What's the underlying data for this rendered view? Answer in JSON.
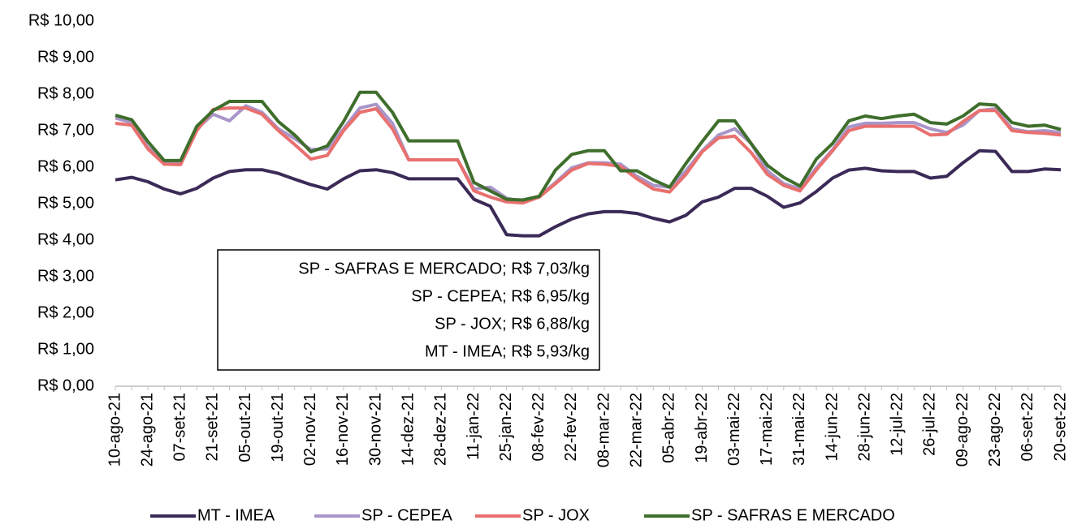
{
  "chart_data": {
    "type": "line",
    "categories": [
      "10-ago-21",
      null,
      "24-ago-21",
      null,
      "07-set-21",
      null,
      "21-set-21",
      null,
      "05-out-21",
      null,
      "19-out-21",
      null,
      "02-nov-21",
      null,
      "16-nov-21",
      null,
      "30-nov-21",
      null,
      "14-dez-21",
      null,
      "28-dez-21",
      null,
      "11-jan-22",
      null,
      "25-jan-22",
      null,
      "08-fev-22",
      null,
      "22-fev-22",
      null,
      "08-mar-22",
      null,
      "22-mar-22",
      null,
      "05-abr-22",
      null,
      "19-abr-22",
      null,
      "03-mai-22",
      null,
      "17-mai-22",
      null,
      "31-mai-22",
      null,
      "14-jun-22",
      null,
      "28-jun-22",
      null,
      "12-jul-22",
      null,
      "26-jul-22",
      null,
      "09-ago-22",
      null,
      "23-ago-22",
      null,
      "06-set-22",
      null,
      "20-set-22"
    ],
    "series": [
      {
        "name": "MT - IMEA",
        "color": "#3b2a57",
        "values": [
          5.65,
          5.72,
          5.6,
          5.4,
          5.27,
          5.42,
          5.7,
          5.88,
          5.93,
          5.93,
          5.83,
          5.67,
          5.52,
          5.4,
          5.68,
          5.9,
          5.93,
          5.85,
          5.68,
          5.68,
          5.68,
          5.68,
          5.12,
          4.93,
          4.15,
          4.12,
          4.12,
          4.37,
          4.58,
          4.72,
          4.78,
          4.78,
          4.73,
          4.6,
          4.5,
          4.68,
          5.05,
          5.18,
          5.42,
          5.42,
          5.2,
          4.9,
          5.02,
          5.33,
          5.7,
          5.92,
          5.97,
          5.9,
          5.88,
          5.88,
          5.7,
          5.75,
          6.12,
          6.45,
          6.43,
          5.88,
          5.88,
          5.95,
          5.93
        ]
      },
      {
        "name": "SP - CEPEA",
        "color": "#a995c9",
        "values": [
          7.35,
          7.22,
          6.55,
          6.12,
          6.1,
          7.05,
          7.45,
          7.27,
          7.68,
          7.5,
          7.05,
          6.78,
          6.48,
          6.5,
          7.05,
          7.62,
          7.72,
          7.2,
          6.2,
          6.2,
          6.2,
          6.2,
          5.4,
          5.45,
          5.15,
          5.05,
          5.2,
          5.58,
          5.98,
          6.12,
          6.12,
          6.08,
          5.75,
          5.5,
          5.45,
          5.9,
          6.45,
          6.88,
          7.05,
          6.65,
          5.9,
          5.55,
          5.4,
          5.98,
          6.48,
          7.1,
          7.2,
          7.2,
          7.22,
          7.22,
          7.05,
          6.95,
          7.15,
          7.55,
          7.6,
          7.05,
          6.97,
          7.0,
          6.95
        ]
      },
      {
        "name": "SP - JOX",
        "color": "#e8706f",
        "values": [
          7.2,
          7.15,
          6.5,
          6.08,
          6.07,
          7.0,
          7.58,
          7.62,
          7.62,
          7.45,
          7.0,
          6.62,
          6.22,
          6.32,
          7.0,
          7.5,
          7.6,
          7.05,
          6.2,
          6.2,
          6.2,
          6.2,
          5.35,
          5.18,
          5.05,
          5.02,
          5.18,
          5.55,
          5.92,
          6.1,
          6.08,
          6.02,
          5.68,
          5.4,
          5.32,
          5.8,
          6.42,
          6.8,
          6.85,
          6.4,
          5.8,
          5.5,
          5.35,
          5.92,
          6.45,
          7.0,
          7.12,
          7.12,
          7.12,
          7.12,
          6.88,
          6.9,
          7.25,
          7.55,
          7.55,
          7.0,
          6.95,
          6.93,
          6.88
        ]
      },
      {
        "name": "SP - SAFRAS E MERCADO",
        "color": "#3f6e2c",
        "values": [
          7.42,
          7.3,
          6.7,
          6.18,
          6.18,
          7.12,
          7.55,
          7.8,
          7.8,
          7.8,
          7.25,
          6.88,
          6.42,
          6.58,
          7.25,
          8.05,
          8.05,
          7.5,
          6.72,
          6.72,
          6.72,
          6.72,
          5.58,
          5.35,
          5.12,
          5.1,
          5.2,
          5.92,
          6.35,
          6.45,
          6.45,
          5.9,
          5.9,
          5.65,
          5.45,
          6.1,
          6.7,
          7.27,
          7.27,
          6.65,
          6.05,
          5.72,
          5.48,
          6.22,
          6.65,
          7.27,
          7.4,
          7.33,
          7.4,
          7.45,
          7.22,
          7.18,
          7.4,
          7.73,
          7.7,
          7.22,
          7.12,
          7.15,
          7.03
        ]
      }
    ],
    "ylim": [
      0,
      10
    ],
    "yticks": [
      {
        "value": 0,
        "label": "R$ 0,00"
      },
      {
        "value": 1,
        "label": "R$ 1,00"
      },
      {
        "value": 2,
        "label": "R$ 2,00"
      },
      {
        "value": 3,
        "label": "R$ 3,00"
      },
      {
        "value": 4,
        "label": "R$ 4,00"
      },
      {
        "value": 5,
        "label": "R$ 5,00"
      },
      {
        "value": 6,
        "label": "R$ 6,00"
      },
      {
        "value": 7,
        "label": "R$ 7,00"
      },
      {
        "value": 8,
        "label": "R$ 8,00"
      },
      {
        "value": 9,
        "label": "R$ 9,00"
      },
      {
        "value": 10,
        "label": "R$ 10,00"
      }
    ],
    "grid": false,
    "legend": "bottom",
    "annotation_lines": [
      "SP - SAFRAS E MERCADO; R$ 7,03/kg",
      "SP - CEPEA; R$ 6,95/kg",
      "SP - JOX; R$ 6,88/kg",
      "MT - IMEA; R$ 5,93/kg"
    ]
  }
}
